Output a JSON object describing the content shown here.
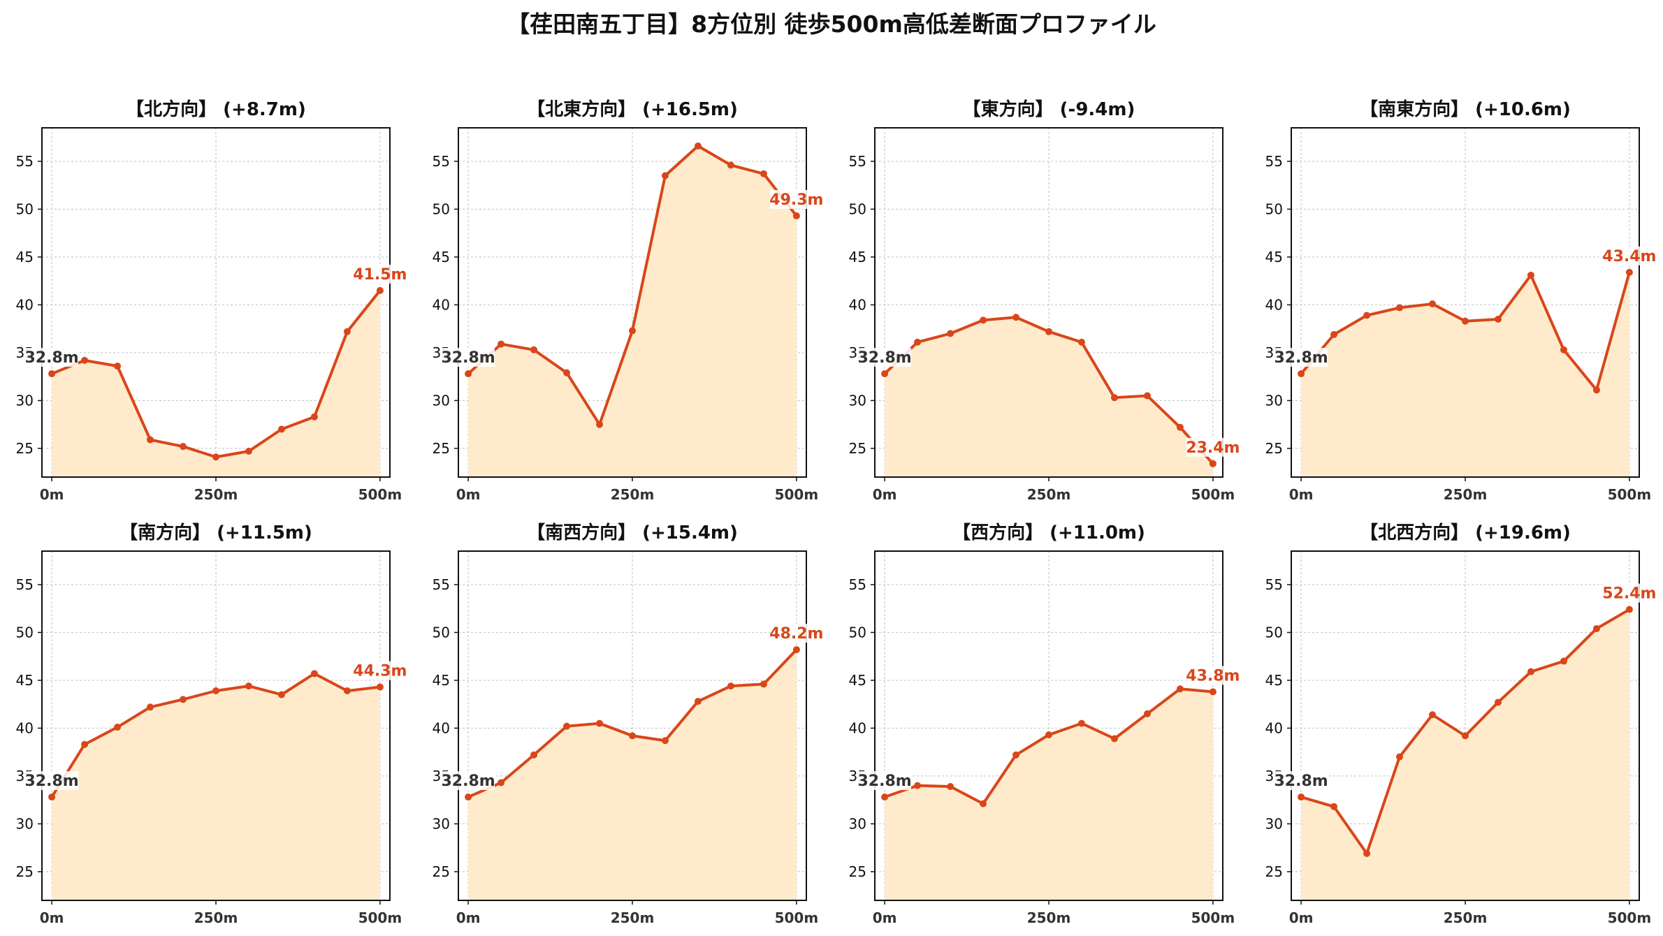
{
  "page_title": "【荏田南五丁目】8方位別 徒歩500m高低差断面プロファイル",
  "colors": {
    "line": "#d9461a",
    "fill": "#ffebcc",
    "grid": "#c8c8c8",
    "start_label": "#333333",
    "end_label": "#d9461a"
  },
  "chart_data": [
    {
      "type": "area",
      "title": "【北方向】 (+8.7m)",
      "x": [
        0,
        50,
        100,
        150,
        200,
        250,
        300,
        350,
        400,
        450,
        500
      ],
      "y": [
        32.8,
        34.2,
        33.6,
        25.9,
        25.2,
        24.1,
        24.7,
        27.0,
        28.3,
        37.2,
        41.5
      ],
      "x_tick_values": [
        0,
        250,
        500
      ],
      "x_tick_labels": [
        "0m",
        "250m",
        "500m"
      ],
      "y_ticks": [
        25,
        30,
        35,
        40,
        45,
        50,
        55
      ],
      "xlim": [
        -15,
        515
      ],
      "ylim": [
        22,
        58.5
      ],
      "start_label": "32.8m",
      "end_label": "41.5m",
      "grid": true
    },
    {
      "type": "area",
      "title": "【北東方向】 (+16.5m)",
      "x": [
        0,
        50,
        100,
        150,
        200,
        250,
        300,
        350,
        400,
        450,
        500
      ],
      "y": [
        32.8,
        35.9,
        35.3,
        32.9,
        27.5,
        37.3,
        53.5,
        56.6,
        54.6,
        53.7,
        49.3
      ],
      "x_tick_values": [
        0,
        250,
        500
      ],
      "x_tick_labels": [
        "0m",
        "250m",
        "500m"
      ],
      "y_ticks": [
        25,
        30,
        35,
        40,
        45,
        50,
        55
      ],
      "xlim": [
        -15,
        515
      ],
      "ylim": [
        22,
        58.5
      ],
      "start_label": "32.8m",
      "end_label": "49.3m",
      "grid": true
    },
    {
      "type": "area",
      "title": "【東方向】 (-9.4m)",
      "x": [
        0,
        50,
        100,
        150,
        200,
        250,
        300,
        350,
        400,
        450,
        500
      ],
      "y": [
        32.8,
        36.1,
        37.0,
        38.4,
        38.7,
        37.2,
        36.1,
        30.3,
        30.5,
        27.2,
        23.4
      ],
      "x_tick_values": [
        0,
        250,
        500
      ],
      "x_tick_labels": [
        "0m",
        "250m",
        "500m"
      ],
      "y_ticks": [
        25,
        30,
        35,
        40,
        45,
        50,
        55
      ],
      "xlim": [
        -15,
        515
      ],
      "ylim": [
        22,
        58.5
      ],
      "start_label": "32.8m",
      "end_label": "23.4m",
      "grid": true
    },
    {
      "type": "area",
      "title": "【南東方向】 (+10.6m)",
      "x": [
        0,
        50,
        100,
        150,
        200,
        250,
        300,
        350,
        400,
        450,
        500
      ],
      "y": [
        32.8,
        36.9,
        38.9,
        39.7,
        40.1,
        38.3,
        38.5,
        43.1,
        35.3,
        31.1,
        43.4
      ],
      "x_tick_values": [
        0,
        250,
        500
      ],
      "x_tick_labels": [
        "0m",
        "250m",
        "500m"
      ],
      "y_ticks": [
        25,
        30,
        35,
        40,
        45,
        50,
        55
      ],
      "xlim": [
        -15,
        515
      ],
      "ylim": [
        22,
        58.5
      ],
      "start_label": "32.8m",
      "end_label": "43.4m",
      "grid": true
    },
    {
      "type": "area",
      "title": "【南方向】 (+11.5m)",
      "x": [
        0,
        50,
        100,
        150,
        200,
        250,
        300,
        350,
        400,
        450,
        500
      ],
      "y": [
        32.8,
        38.3,
        40.1,
        42.2,
        43.0,
        43.9,
        44.4,
        43.5,
        45.7,
        43.9,
        44.3
      ],
      "x_tick_values": [
        0,
        250,
        500
      ],
      "x_tick_labels": [
        "0m",
        "250m",
        "500m"
      ],
      "y_ticks": [
        25,
        30,
        35,
        40,
        45,
        50,
        55
      ],
      "xlim": [
        -15,
        515
      ],
      "ylim": [
        22,
        58.5
      ],
      "start_label": "32.8m",
      "end_label": "44.3m",
      "grid": true
    },
    {
      "type": "area",
      "title": "【南西方向】 (+15.4m)",
      "x": [
        0,
        50,
        100,
        150,
        200,
        250,
        300,
        350,
        400,
        450,
        500
      ],
      "y": [
        32.8,
        34.3,
        37.2,
        40.2,
        40.5,
        39.2,
        38.7,
        42.8,
        44.4,
        44.6,
        48.2
      ],
      "x_tick_values": [
        0,
        250,
        500
      ],
      "x_tick_labels": [
        "0m",
        "250m",
        "500m"
      ],
      "y_ticks": [
        25,
        30,
        35,
        40,
        45,
        50,
        55
      ],
      "xlim": [
        -15,
        515
      ],
      "ylim": [
        22,
        58.5
      ],
      "start_label": "32.8m",
      "end_label": "48.2m",
      "grid": true
    },
    {
      "type": "area",
      "title": "【西方向】 (+11.0m)",
      "x": [
        0,
        50,
        100,
        150,
        200,
        250,
        300,
        350,
        400,
        450,
        500
      ],
      "y": [
        32.8,
        34.0,
        33.9,
        32.1,
        37.2,
        39.3,
        40.5,
        38.9,
        41.5,
        44.1,
        43.8
      ],
      "x_tick_values": [
        0,
        250,
        500
      ],
      "x_tick_labels": [
        "0m",
        "250m",
        "500m"
      ],
      "y_ticks": [
        25,
        30,
        35,
        40,
        45,
        50,
        55
      ],
      "xlim": [
        -15,
        515
      ],
      "ylim": [
        22,
        58.5
      ],
      "start_label": "32.8m",
      "end_label": "43.8m",
      "grid": true
    },
    {
      "type": "area",
      "title": "【北西方向】 (+19.6m)",
      "x": [
        0,
        50,
        100,
        150,
        200,
        250,
        300,
        350,
        400,
        450,
        500
      ],
      "y": [
        32.8,
        31.8,
        26.9,
        37.0,
        41.4,
        39.2,
        42.7,
        45.9,
        47.0,
        50.4,
        52.4
      ],
      "x_tick_values": [
        0,
        250,
        500
      ],
      "x_tick_labels": [
        "0m",
        "250m",
        "500m"
      ],
      "y_ticks": [
        25,
        30,
        35,
        40,
        45,
        50,
        55
      ],
      "xlim": [
        -15,
        515
      ],
      "ylim": [
        22,
        58.5
      ],
      "start_label": "32.8m",
      "end_label": "52.4m",
      "grid": true
    }
  ]
}
